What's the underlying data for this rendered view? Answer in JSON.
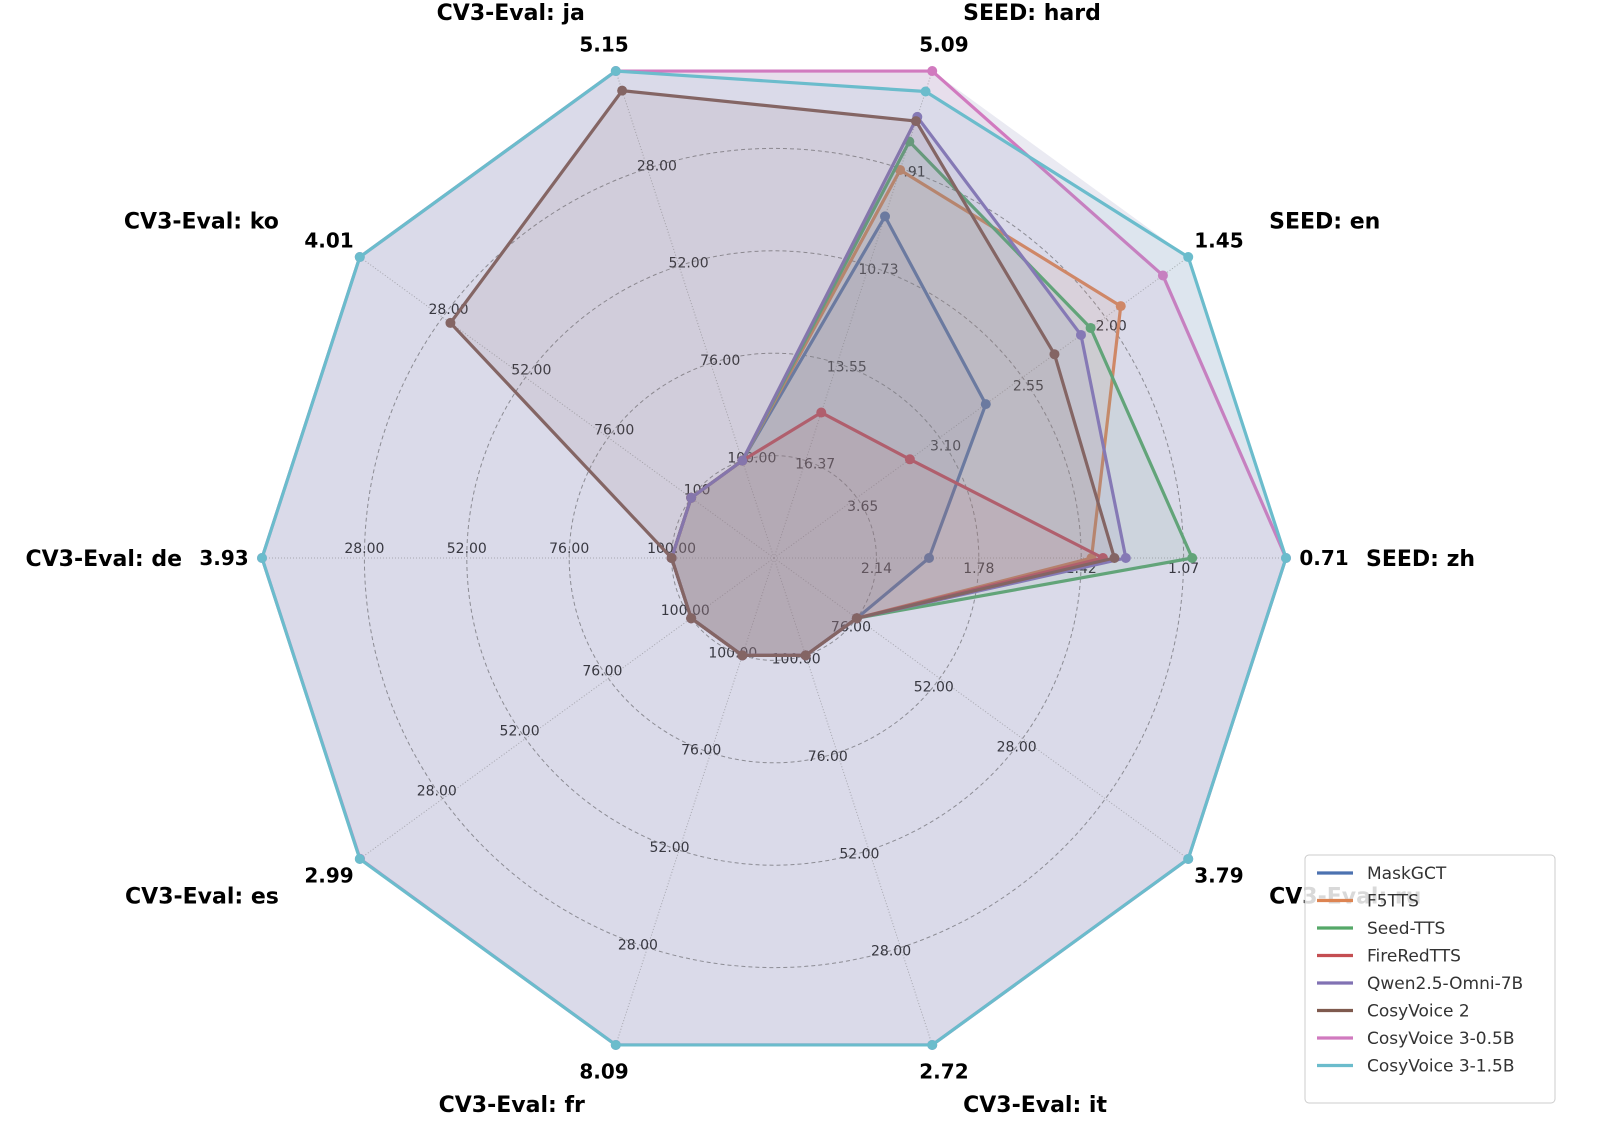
{
  "chart_data": {
    "type": "radar",
    "axes": [
      {
        "label": "SEED: zh",
        "best": "0.71",
        "ticks": [
          "2.14",
          "1.78",
          "1.42",
          "1.07"
        ],
        "inner_tick": "",
        "range": [
          2.5,
          0.71
        ]
      },
      {
        "label": "SEED: en",
        "best": "1.45",
        "ticks": [
          "3.65",
          "3.10",
          "2.55",
          "2.00"
        ],
        "inner_tick": "",
        "range": [
          4.2,
          1.45
        ]
      },
      {
        "label": "SEED: hard",
        "best": "5.09",
        "ticks": [
          "16.37",
          "13.55",
          "10.73",
          "7.91"
        ],
        "inner_tick": "",
        "range": [
          19.19,
          5.09
        ]
      },
      {
        "label": "CV3-Eval: ja",
        "best": "5.15",
        "ticks": [
          "76.00",
          "52.00",
          "28.00"
        ],
        "inner_tick": "100.00",
        "range": [
          100,
          5.15
        ]
      },
      {
        "label": "CV3-Eval: ko",
        "best": "4.01",
        "ticks": [
          "76.00",
          "52.00",
          "28.00"
        ],
        "inner_tick": "100",
        "range": [
          100,
          4.01
        ]
      },
      {
        "label": "CV3-Eval: de",
        "best": "3.93",
        "ticks": [
          "76.00",
          "52.00",
          "28.00"
        ],
        "inner_tick": "100.00",
        "range": [
          100,
          3.93
        ]
      },
      {
        "label": "CV3-Eval: es",
        "best": "2.99",
        "ticks": [
          "76.00",
          "52.00",
          "28.00"
        ],
        "inner_tick": "100.00",
        "range": [
          100,
          2.99
        ]
      },
      {
        "label": "CV3-Eval: fr",
        "best": "8.09",
        "ticks": [
          "76.00",
          "52.00",
          "28.00"
        ],
        "inner_tick": "100.00",
        "range": [
          100,
          8.09
        ]
      },
      {
        "label": "CV3-Eval: it",
        "best": "2.72",
        "ticks": [
          "76.00",
          "52.00",
          "28.00"
        ],
        "inner_tick": "100.00",
        "range": [
          100,
          2.72
        ]
      },
      {
        "label": "CV3-Eval: ru",
        "best": "3.79",
        "ticks": [
          "76.00",
          "52.00",
          "28.00"
        ],
        "inner_tick": "",
        "range": [
          100,
          3.79
        ]
      }
    ],
    "series": [
      {
        "name": "MaskGCT",
        "color": "#4c72b0",
        "values": [
          2.27,
          3.13,
          10.35,
          100,
          100,
          100,
          100,
          100,
          100,
          100
        ]
      },
      {
        "name": "F5TTS",
        "color": "#dd8452",
        "values": [
          1.56,
          2.01,
          8.67,
          100,
          100,
          100,
          100,
          100,
          100,
          100
        ]
      },
      {
        "name": "Seed-TTS",
        "color": "#55a868",
        "values": [
          1.12,
          2.26,
          7.64,
          100,
          100,
          100,
          100,
          100,
          100,
          100
        ]
      },
      {
        "name": "FireRedTTS",
        "color": "#c44e52",
        "values": [
          1.51,
          3.76,
          17.45,
          100,
          100,
          100,
          100,
          100,
          100,
          100
        ]
      },
      {
        "name": "Qwen2.5-Omni-7B",
        "color": "#8172b3",
        "values": [
          1.41,
          2.34,
          6.75,
          100,
          100,
          100,
          100,
          100,
          100,
          100
        ]
      },
      {
        "name": "CosyVoice 2",
        "color": "#7f5a4e",
        "values": [
          1.46,
          2.56,
          6.9,
          9.92,
          30.27,
          100,
          100,
          100,
          100,
          100
        ]
      },
      {
        "name": "CosyVoice 3-0.5B",
        "color": "#d17abf",
        "values": [
          0.71,
          1.66,
          5.09,
          5.15,
          4.01,
          3.93,
          3.06,
          8.09,
          2.72,
          3.79
        ]
      },
      {
        "name": "CosyVoice 3-1.5B",
        "color": "#6bbccc",
        "values": [
          0.71,
          1.45,
          5.83,
          5.15,
          4.01,
          3.93,
          2.99,
          8.09,
          2.72,
          3.79
        ]
      }
    ],
    "legend_position": "bottom-right",
    "grid": true
  }
}
